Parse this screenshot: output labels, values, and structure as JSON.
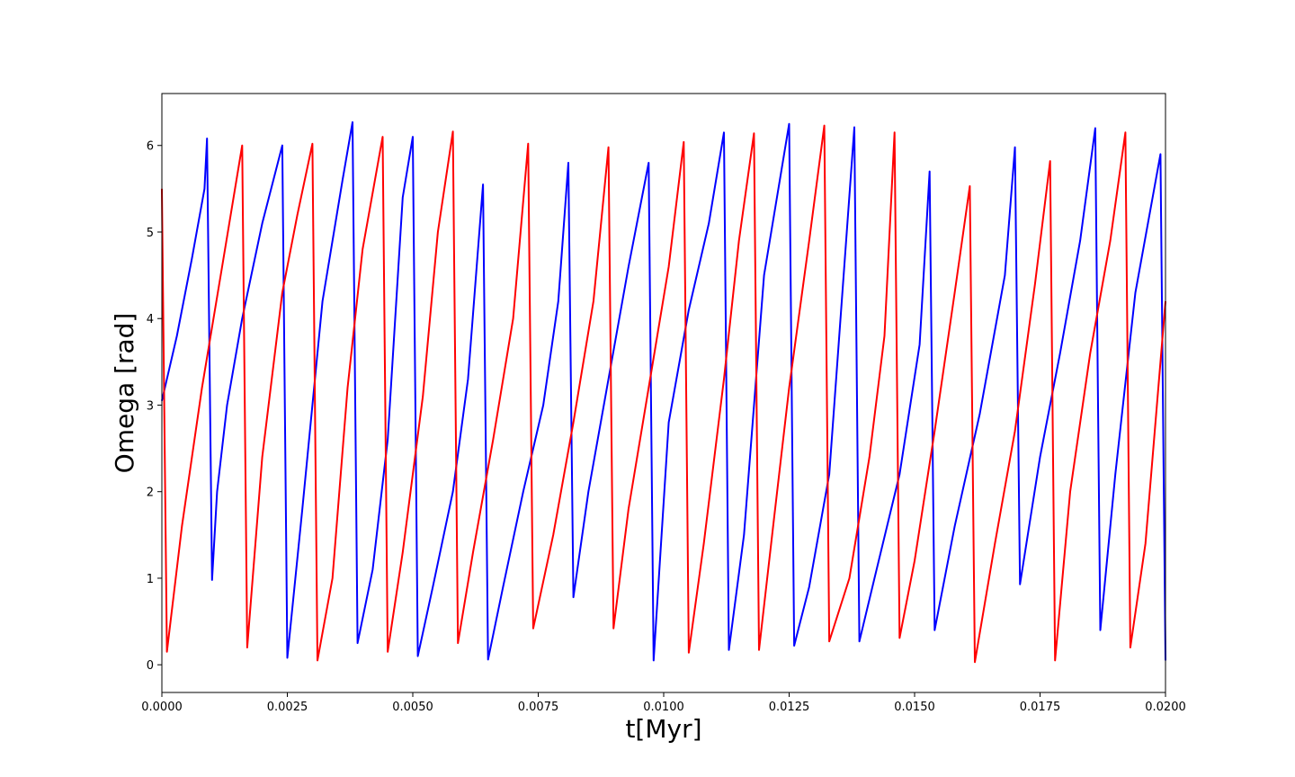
{
  "chart_data": {
    "type": "line",
    "title": "",
    "xlabel": "t[Myr]",
    "ylabel": "Omega [rad]",
    "xlim": [
      0.0,
      0.02
    ],
    "ylim": [
      -0.32,
      6.6
    ],
    "grid": false,
    "legend": "none",
    "xticks": [
      "0.0000",
      "0.0025",
      "0.0050",
      "0.0075",
      "0.0100",
      "0.0125",
      "0.0150",
      "0.0175",
      "0.0200"
    ],
    "yticks": [
      "0",
      "1",
      "2",
      "3",
      "4",
      "5",
      "6"
    ],
    "series": [
      {
        "color": "#0000ff",
        "x": [
          0,
          0.0003,
          0.0006,
          0.00085,
          0.0009,
          0.001,
          0.0011,
          0.0013,
          0.0016,
          0.002,
          0.0024,
          0.0025,
          0.0028,
          0.0032,
          0.0036,
          0.0038,
          0.0039,
          0.0042,
          0.0045,
          0.0048,
          0.005,
          0.0051,
          0.0054,
          0.0058,
          0.0061,
          0.0064,
          0.0065,
          0.0068,
          0.0072,
          0.0076,
          0.0079,
          0.0081,
          0.0082,
          0.0085,
          0.0089,
          0.0093,
          0.0097,
          0.0098,
          0.0101,
          0.0105,
          0.0109,
          0.0112,
          0.0113,
          0.0116,
          0.012,
          0.0125,
          0.0126,
          0.0129,
          0.0133,
          0.0138,
          0.0139,
          0.0142,
          0.0147,
          0.0151,
          0.0153,
          0.0154,
          0.0158,
          0.0163,
          0.0168,
          0.017,
          0.0171,
          0.0175,
          0.0179,
          0.0183,
          0.0186,
          0.0187,
          0.019,
          0.0194,
          0.0199,
          0.02
        ],
        "y": [
          3.05,
          3.8,
          4.7,
          5.5,
          6.08,
          0.98,
          2.0,
          3.0,
          4.0,
          5.1,
          6.0,
          0.08,
          1.8,
          4.2,
          5.6,
          6.27,
          0.25,
          1.1,
          2.6,
          5.4,
          6.1,
          0.1,
          0.9,
          2.0,
          3.3,
          5.55,
          0.06,
          0.9,
          2.0,
          3.0,
          4.2,
          5.8,
          0.78,
          2.0,
          3.3,
          4.6,
          5.8,
          0.05,
          2.8,
          4.1,
          5.1,
          6.15,
          0.17,
          1.5,
          4.5,
          6.25,
          0.22,
          0.9,
          2.2,
          6.21,
          0.27,
          1.0,
          2.2,
          3.7,
          5.7,
          0.4,
          1.6,
          2.9,
          4.5,
          5.98,
          0.93,
          2.4,
          3.6,
          4.9,
          6.2,
          0.4,
          2.2,
          4.3,
          5.9,
          0.05
        ]
      },
      {
        "color": "#ff0000",
        "x": [
          0,
          0.0001,
          0.0004,
          0.0008,
          0.0012,
          0.0016,
          0.0017,
          0.002,
          0.0024,
          0.0027,
          0.003,
          0.0031,
          0.0034,
          0.0037,
          0.004,
          0.0044,
          0.0045,
          0.0048,
          0.0052,
          0.0055,
          0.0058,
          0.0059,
          0.0062,
          0.0066,
          0.007,
          0.0073,
          0.0074,
          0.0078,
          0.0082,
          0.0086,
          0.0089,
          0.009,
          0.0093,
          0.0097,
          0.0101,
          0.0104,
          0.0105,
          0.0108,
          0.0112,
          0.0115,
          0.0118,
          0.0119,
          0.0122,
          0.0125,
          0.0129,
          0.0132,
          0.0133,
          0.0137,
          0.0141,
          0.0144,
          0.0146,
          0.0147,
          0.015,
          0.0154,
          0.0158,
          0.0161,
          0.0162,
          0.0166,
          0.017,
          0.0174,
          0.0177,
          0.0178,
          0.0181,
          0.0185,
          0.0189,
          0.0192,
          0.0193,
          0.0196,
          0.02
        ],
        "y": [
          5.5,
          0.15,
          1.6,
          3.2,
          4.6,
          6.0,
          0.2,
          2.4,
          4.3,
          5.2,
          6.02,
          0.05,
          1.0,
          3.2,
          4.8,
          6.1,
          0.15,
          1.3,
          3.1,
          5.0,
          6.16,
          0.25,
          1.3,
          2.6,
          4.0,
          6.02,
          0.42,
          1.5,
          2.8,
          4.2,
          5.98,
          0.42,
          1.8,
          3.2,
          4.6,
          6.04,
          0.14,
          1.4,
          3.3,
          4.9,
          6.14,
          0.17,
          1.7,
          3.2,
          4.9,
          6.23,
          0.27,
          1.0,
          2.4,
          3.8,
          6.15,
          0.31,
          1.2,
          2.7,
          4.3,
          5.53,
          0.03,
          1.4,
          2.7,
          4.4,
          5.82,
          0.05,
          2.0,
          3.6,
          4.9,
          6.15,
          0.2,
          1.4,
          4.2
        ]
      }
    ]
  }
}
